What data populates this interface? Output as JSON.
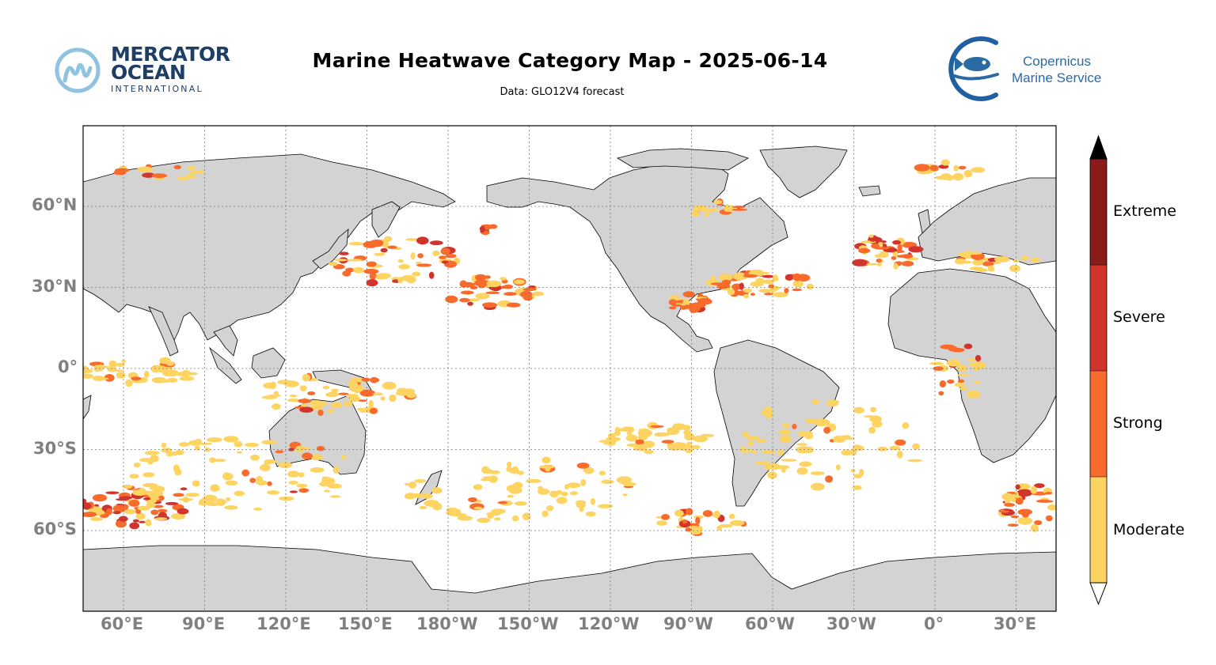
{
  "header": {
    "title": "Marine Heatwave Category Map - 2025-06-14",
    "subtitle": "Data: GLO12V4 forecast"
  },
  "logos": {
    "left": {
      "line1": "MERCATOR",
      "line2": "OCEAN",
      "line3": "INTERNATIONAL"
    },
    "right": {
      "line1": "Copernicus",
      "line2": "Marine Service"
    }
  },
  "map": {
    "projection": "PlateCarree (central longitude 160°)",
    "land_color": "#d3d3d3",
    "ocean_color": "#ffffff",
    "gridlines": "dotted",
    "lat_ticks": [
      "60°N",
      "30°N",
      "0°",
      "30°S",
      "60°S"
    ],
    "lon_ticks": [
      "60°E",
      "90°E",
      "120°E",
      "150°E",
      "180°W",
      "150°W",
      "120°W",
      "90°W",
      "60°W",
      "30°W",
      "0°",
      "30°E"
    ]
  },
  "colorbar": {
    "categories": [
      {
        "label": "Extreme",
        "color": "#8b1a1a"
      },
      {
        "label": "Severe",
        "color": "#d0342c"
      },
      {
        "label": "Strong",
        "color": "#f86b2c"
      },
      {
        "label": "Moderate",
        "color": "#fdd462"
      }
    ],
    "extend_over_color": "#000000",
    "extend_under_color": "#ffffff"
  }
}
